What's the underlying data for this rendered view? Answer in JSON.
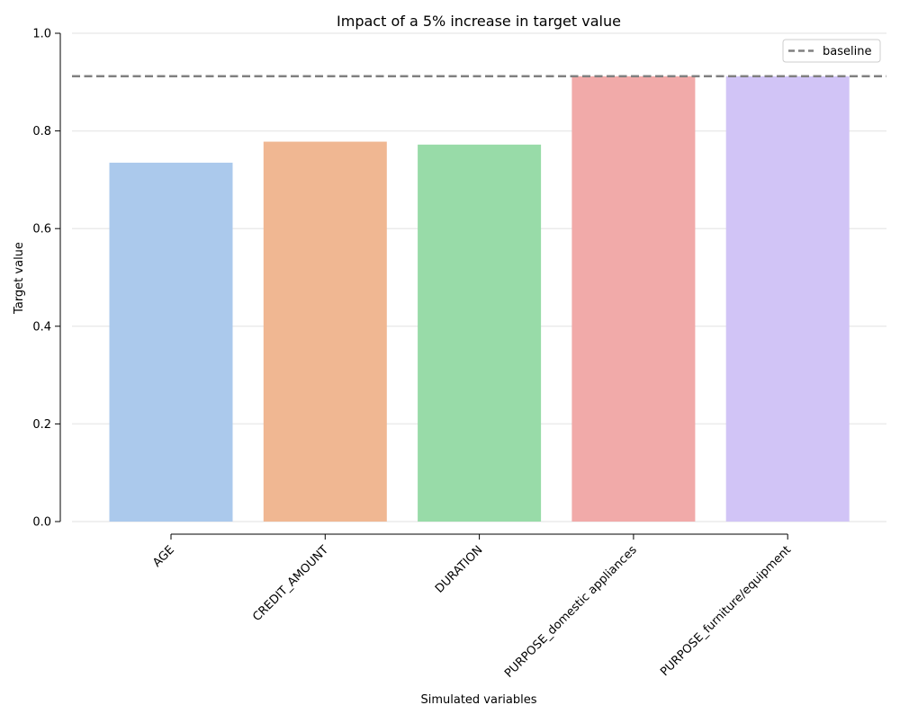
{
  "chart_data": {
    "type": "bar",
    "title": "Impact of a 5% increase in target value",
    "xlabel": "Simulated variables",
    "ylabel": "Target value",
    "categories": [
      "AGE",
      "CREDIT_AMOUNT",
      "DURATION",
      "PURPOSE_domestic appliances",
      "PURPOSE_furniture/equipment"
    ],
    "values": [
      0.735,
      0.778,
      0.772,
      0.912,
      0.912
    ],
    "colors": [
      "#abc9ec",
      "#f0b792",
      "#98dba8",
      "#f1aaa9",
      "#d1c4f6"
    ],
    "ylim": [
      0,
      1.0
    ],
    "yticks": [
      "0.0",
      "0.2",
      "0.4",
      "0.6",
      "0.8",
      "1.0"
    ],
    "grid": true,
    "baseline": {
      "label": "baseline",
      "value": 0.912,
      "color": "#808080",
      "style": "dashed"
    },
    "legend_position": "top-right"
  }
}
